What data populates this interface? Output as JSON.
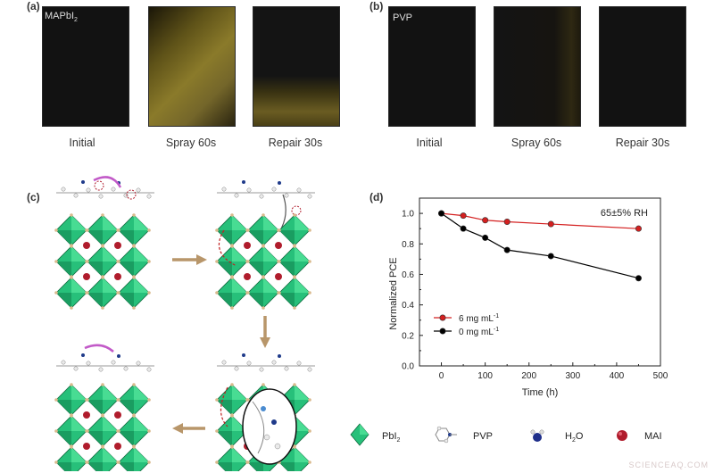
{
  "panels": {
    "a": {
      "label": "(a)",
      "tag": "MAPbI",
      "tag_sub": "2",
      "captions": [
        "Initial",
        "Spray 60s",
        "Repair 30s"
      ]
    },
    "b": {
      "label": "(b)",
      "tag": "PVP",
      "captions": [
        "Initial",
        "Spray 60s",
        "Repair 30s"
      ]
    },
    "c": {
      "label": "(c)"
    },
    "d": {
      "label": "(d)"
    }
  },
  "colors": {
    "film_dark": "#121212",
    "degraded_yellow": "#8a7a2a",
    "octahedron_green": "#27c07a",
    "mai_red": "#b01c2c",
    "series_6mg": "#d42020",
    "series_0mg": "#000000",
    "arrow_tan": "#b8966a"
  },
  "legend_c": {
    "items": [
      {
        "label": "PbI",
        "sub": "2",
        "icon": "octahedron-icon"
      },
      {
        "label": "PVP",
        "icon": "pvp-molecule-icon"
      },
      {
        "label": "H",
        "sub": "2",
        "suffix": "O",
        "icon": "water-molecule-icon"
      },
      {
        "label": "MAI",
        "icon": "mai-sphere-icon"
      }
    ]
  },
  "chart_data": {
    "type": "line",
    "title": "",
    "annotation": "65±5% RH",
    "xlabel": "Time (h)",
    "ylabel": "Normalized PCE",
    "xlim": [
      -50,
      500
    ],
    "ylim": [
      0.0,
      1.1
    ],
    "xticks": [
      0,
      100,
      200,
      300,
      400,
      500
    ],
    "yticks": [
      0.0,
      0.2,
      0.4,
      0.6,
      0.8,
      1.0
    ],
    "xtick_labels": [
      "0",
      "100",
      "200",
      "300",
      "400",
      "500"
    ],
    "ytick_labels": [
      "0.0",
      "0.2",
      "0.4",
      "0.6",
      "0.8",
      "1.0"
    ],
    "legend_position": "bottom-left",
    "series": [
      {
        "name": "6 mg mL",
        "name_sup": "-1",
        "color": "#d42020",
        "x": [
          0,
          50,
          100,
          150,
          250,
          450
        ],
        "y": [
          1.0,
          0.985,
          0.955,
          0.945,
          0.93,
          0.9
        ]
      },
      {
        "name": "0 mg mL",
        "name_sup": "-1",
        "color": "#000000",
        "x": [
          0,
          50,
          100,
          150,
          250,
          450
        ],
        "y": [
          1.0,
          0.9,
          0.84,
          0.76,
          0.72,
          0.575
        ]
      }
    ]
  },
  "watermark": "SCIENCEAQ.COM"
}
